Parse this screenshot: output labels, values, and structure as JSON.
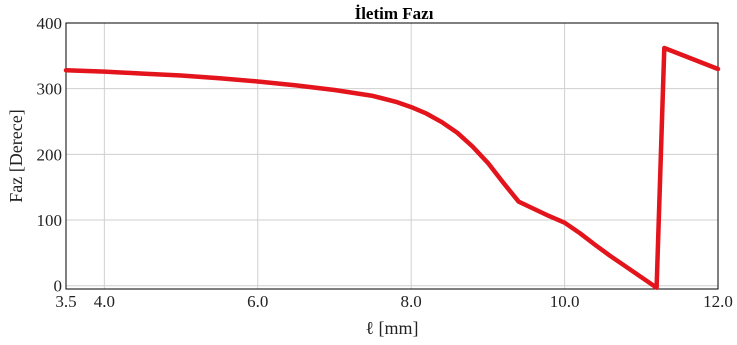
{
  "chart_data": {
    "type": "line",
    "title": "İletim Fazı",
    "xlabel": "ℓ [mm]",
    "ylabel": "Faz [Derece]",
    "xlim": [
      3.5,
      12.0
    ],
    "ylim": [
      -5,
      400
    ],
    "xticks": [
      3.5,
      4.0,
      6.0,
      8.0,
      10.0,
      12.0
    ],
    "xtick_labels": [
      "3.5",
      "4.0",
      "6.0",
      "8.0",
      "10.0",
      "12.0"
    ],
    "yticks": [
      0,
      100,
      200,
      300,
      400
    ],
    "ytick_labels": [
      "0",
      "100",
      "200",
      "300",
      "400"
    ],
    "grid": true,
    "series": [
      {
        "color": "#e3141c",
        "x": [
          3.5,
          4.0,
          4.5,
          5.0,
          5.5,
          6.0,
          6.5,
          7.0,
          7.5,
          7.8,
          8.0,
          8.2,
          8.4,
          8.6,
          8.8,
          9.0,
          9.2,
          9.4,
          9.6,
          9.8,
          10.0,
          10.2,
          10.4,
          10.6,
          10.8,
          11.0,
          11.2,
          11.3,
          12.0
        ],
        "y": [
          328,
          326,
          323,
          320,
          316,
          311,
          305,
          298,
          289,
          280,
          272,
          262,
          249,
          233,
          212,
          187,
          157,
          128,
          117,
          106,
          96,
          80,
          62,
          45,
          29,
          13,
          -3,
          362,
          330
        ]
      }
    ]
  }
}
